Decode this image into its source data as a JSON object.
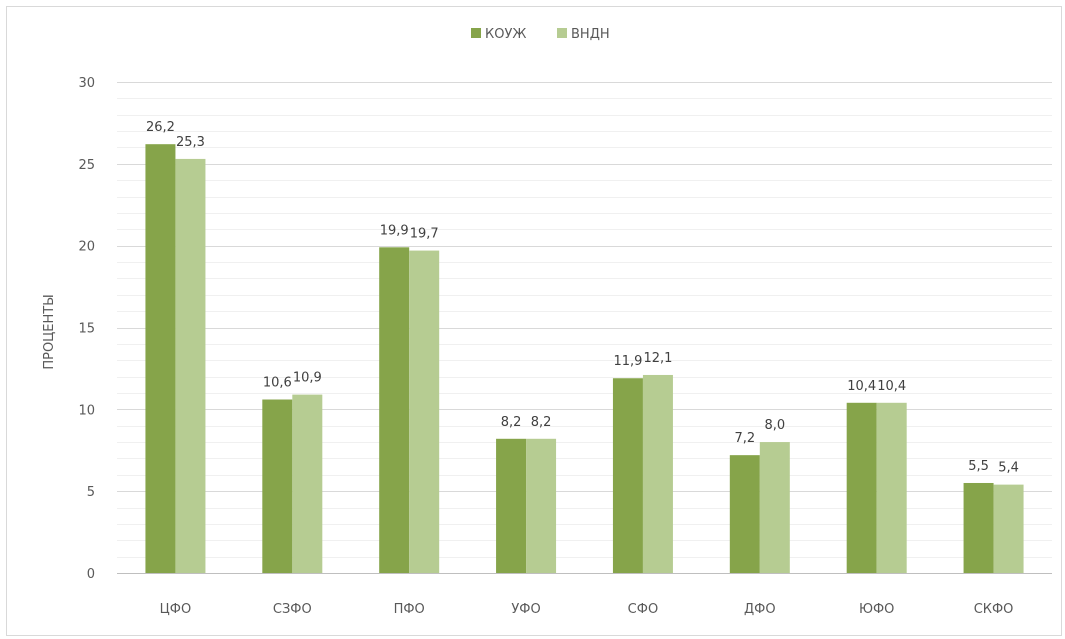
{
  "chart_data": {
    "type": "bar",
    "title": "",
    "xlabel": "",
    "ylabel": "ПРОЦЕНТЫ",
    "ylim": [
      0,
      30
    ],
    "yticks": [
      "0",
      "5",
      "10",
      "15",
      "20",
      "25",
      "30"
    ],
    "grid": true,
    "legend_position": "top-center",
    "categories": [
      "ЦФО",
      "СЗФО",
      "ПФО",
      "УФО",
      "СФО",
      "ДФО",
      "ЮФО",
      "СКФО"
    ],
    "series": [
      {
        "name": "КОУЖ",
        "color": "#86a44a",
        "values": [
          26.2,
          10.6,
          19.9,
          8.2,
          11.9,
          7.2,
          10.4,
          5.5
        ],
        "labels": [
          "26,2",
          "10,6",
          "19,9",
          "8,2",
          "11,9",
          "7,2",
          "10,4",
          "5,5"
        ]
      },
      {
        "name": "ВНДН",
        "color": "#b6cc92",
        "values": [
          25.3,
          10.9,
          19.7,
          8.2,
          12.1,
          8.0,
          10.4,
          5.4
        ],
        "labels": [
          "25,3",
          "10,9",
          "19,7",
          "8,2",
          "12,1",
          "8,0",
          "10,4",
          "5,4"
        ]
      }
    ]
  }
}
